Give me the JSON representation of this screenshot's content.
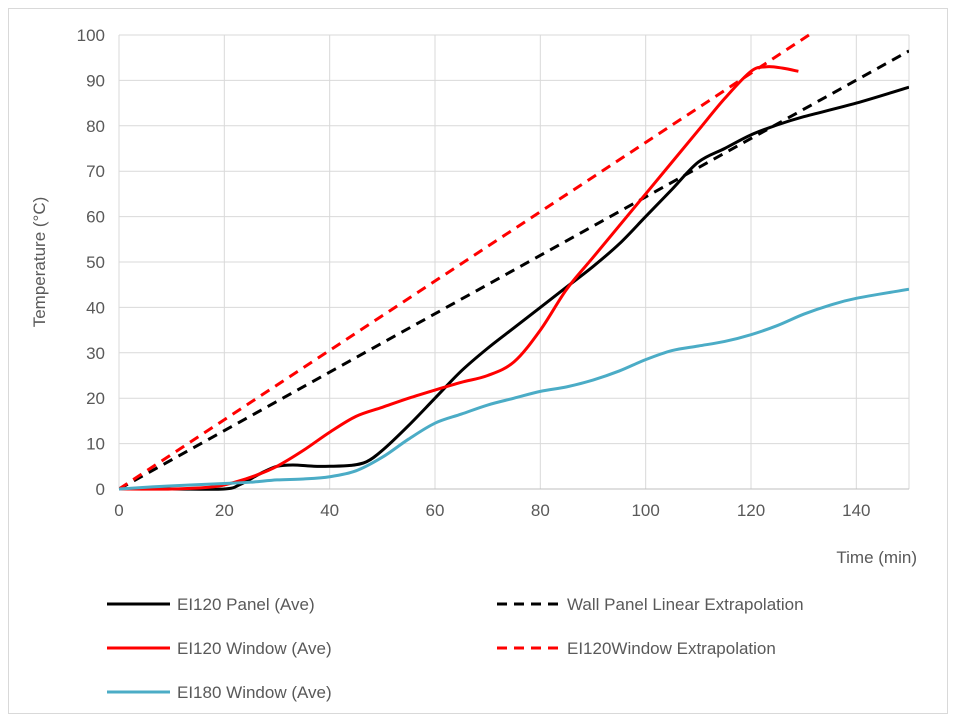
{
  "chart_data": {
    "type": "line",
    "xlabel": "Time (min)",
    "ylabel": "Temperature (°C)",
    "xlim": [
      0,
      150
    ],
    "ylim": [
      0,
      100
    ],
    "x_ticks": [
      0,
      20,
      40,
      60,
      80,
      100,
      120,
      140
    ],
    "y_ticks": [
      0,
      10,
      20,
      30,
      40,
      50,
      60,
      70,
      80,
      90,
      100
    ],
    "grid": true,
    "legend_position": "bottom",
    "series": [
      {
        "name": "EI120 Panel (Ave)",
        "color": "#000000",
        "style": "solid",
        "points": [
          [
            0,
            0
          ],
          [
            10,
            0
          ],
          [
            20,
            0
          ],
          [
            23,
            1
          ],
          [
            27,
            3.5
          ],
          [
            30,
            5
          ],
          [
            33,
            5.3
          ],
          [
            37,
            5
          ],
          [
            40,
            5
          ],
          [
            44,
            5.2
          ],
          [
            47,
            6
          ],
          [
            50,
            8.5
          ],
          [
            55,
            14
          ],
          [
            60,
            20
          ],
          [
            65,
            26
          ],
          [
            70,
            31
          ],
          [
            75,
            35.5
          ],
          [
            80,
            40
          ],
          [
            85,
            44.5
          ],
          [
            90,
            49
          ],
          [
            95,
            54
          ],
          [
            100,
            60
          ],
          [
            105,
            66
          ],
          [
            110,
            72
          ],
          [
            115,
            75
          ],
          [
            120,
            78
          ],
          [
            125,
            80.2
          ],
          [
            130,
            82
          ],
          [
            140,
            85
          ],
          [
            150,
            88.5
          ]
        ]
      },
      {
        "name": "EI120 Window (Ave)",
        "color": "#ff0000",
        "style": "solid",
        "points": [
          [
            0,
            0
          ],
          [
            10,
            0
          ],
          [
            18,
            0.5
          ],
          [
            22,
            1.5
          ],
          [
            26,
            3
          ],
          [
            30,
            5
          ],
          [
            35,
            8.5
          ],
          [
            40,
            12.5
          ],
          [
            45,
            16
          ],
          [
            50,
            18
          ],
          [
            55,
            20
          ],
          [
            60,
            21.8
          ],
          [
            65,
            23.5
          ],
          [
            70,
            25
          ],
          [
            75,
            28
          ],
          [
            80,
            35
          ],
          [
            85,
            44
          ],
          [
            90,
            51
          ],
          [
            95,
            58
          ],
          [
            100,
            65
          ],
          [
            105,
            72
          ],
          [
            110,
            79
          ],
          [
            115,
            86
          ],
          [
            120,
            92
          ],
          [
            123,
            93
          ],
          [
            126,
            92.7
          ],
          [
            129,
            92
          ]
        ]
      },
      {
        "name": "EI180 Window (Ave)",
        "color": "#4bacc6",
        "style": "solid",
        "points": [
          [
            0,
            0
          ],
          [
            10,
            0.7
          ],
          [
            20,
            1.2
          ],
          [
            25,
            1.5
          ],
          [
            30,
            2
          ],
          [
            35,
            2.2
          ],
          [
            40,
            2.7
          ],
          [
            45,
            4
          ],
          [
            50,
            7
          ],
          [
            55,
            11
          ],
          [
            60,
            14.5
          ],
          [
            65,
            16.5
          ],
          [
            70,
            18.5
          ],
          [
            75,
            20
          ],
          [
            80,
            21.5
          ],
          [
            85,
            22.5
          ],
          [
            90,
            24
          ],
          [
            95,
            26
          ],
          [
            100,
            28.5
          ],
          [
            105,
            30.5
          ],
          [
            110,
            31.5
          ],
          [
            115,
            32.5
          ],
          [
            120,
            34
          ],
          [
            125,
            36
          ],
          [
            130,
            38.5
          ],
          [
            135,
            40.5
          ],
          [
            140,
            42
          ],
          [
            150,
            44
          ]
        ]
      },
      {
        "name": "Wall Panel Linear Extrapolation",
        "color": "#000000",
        "style": "dashed",
        "points": [
          [
            0,
            0
          ],
          [
            150,
            96.5
          ]
        ]
      },
      {
        "name": "EI120Window Extrapolation",
        "color": "#ff0000",
        "style": "dashed",
        "points": [
          [
            0,
            0
          ],
          [
            131,
            100
          ]
        ]
      }
    ]
  }
}
